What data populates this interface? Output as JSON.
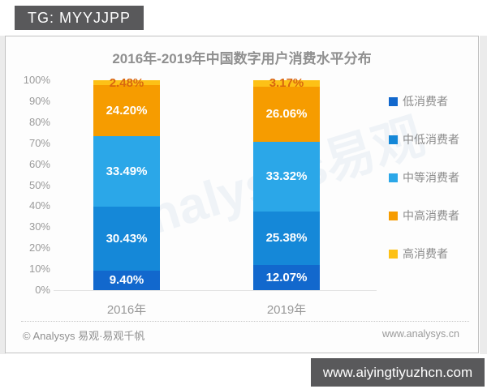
{
  "page": {
    "top_badge": "TG: MYYJJPP",
    "bottom_badge": "www.aiyingtiyuzhcn.com"
  },
  "chart": {
    "title": "2016年-2019年中国数字用户消费水平分布",
    "watermark": "Analysys易观",
    "footer_left": "© Analysys 易观·易观千帆",
    "footer_right": "www.analysys.cn"
  },
  "chart_data": {
    "type": "bar",
    "stacked": true,
    "title": "2016年-2019年中国数字用户消费水平分布",
    "categories": [
      "2016年",
      "2019年"
    ],
    "series": [
      {
        "name": "低消费者",
        "color": "#1268cd",
        "values": [
          9.4,
          12.07
        ]
      },
      {
        "name": "中低消费者",
        "color": "#1588d8",
        "values": [
          30.43,
          25.38
        ]
      },
      {
        "name": "中等消费者",
        "color": "#2ba7e8",
        "values": [
          33.49,
          33.32
        ]
      },
      {
        "name": "中高消费者",
        "color": "#f69c00",
        "values": [
          24.2,
          26.06
        ]
      },
      {
        "name": "高消费者",
        "color": "#fdc116",
        "values": [
          2.48,
          3.17
        ]
      }
    ],
    "value_labels": [
      [
        "9.40%",
        "30.43%",
        "33.49%",
        "24.20%",
        "2.48%"
      ],
      [
        "12.07%",
        "25.38%",
        "33.32%",
        "26.06%",
        "3.17%"
      ]
    ],
    "y_ticks": [
      "100%",
      "90%",
      "80%",
      "70%",
      "60%",
      "50%",
      "40%",
      "30%",
      "20%",
      "10%",
      "0%"
    ],
    "ylim": [
      0,
      100
    ],
    "xlabel": "",
    "ylabel": "",
    "grid": false,
    "legend_position": "right",
    "outside_label_color": "#d9670f"
  }
}
